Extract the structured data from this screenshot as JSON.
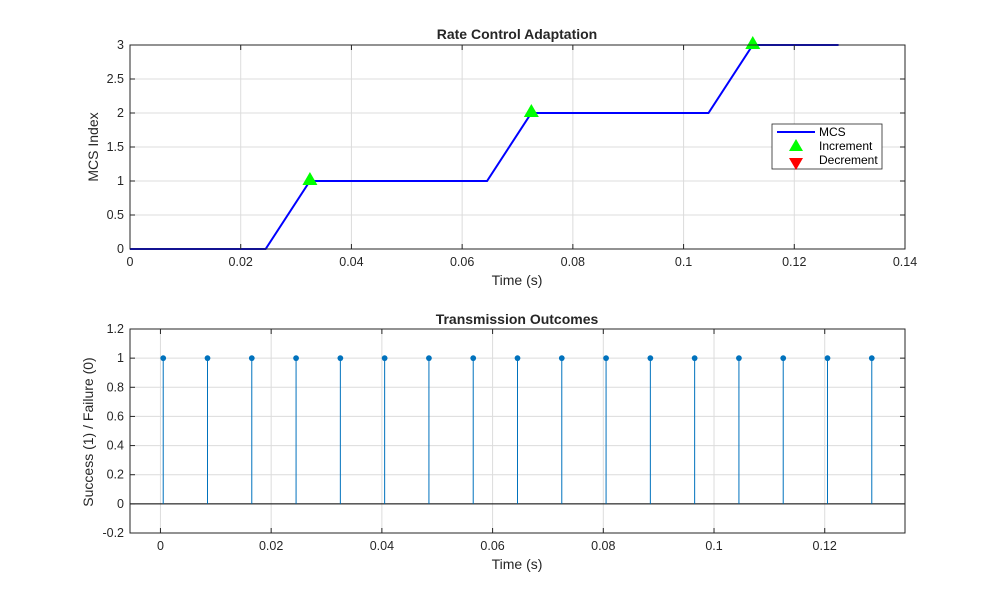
{
  "chart_data": [
    {
      "type": "line",
      "title": "Rate Control Adaptation",
      "xlabel": "Time (s)",
      "ylabel": "MCS Index",
      "xlim": [
        0,
        0.14
      ],
      "ylim": [
        0,
        3
      ],
      "xticks": [
        0,
        0.02,
        0.04,
        0.06,
        0.08,
        0.1,
        0.12,
        0.14
      ],
      "xtick_labels": [
        "0",
        "0.02",
        "0.04",
        "0.06",
        "0.08",
        "0.1",
        "0.12",
        "0.14"
      ],
      "yticks": [
        0,
        0.5,
        1,
        1.5,
        2,
        2.5,
        3
      ],
      "ytick_labels": [
        "0",
        "0.5",
        "1",
        "1.5",
        "2",
        "2.5",
        "3"
      ],
      "grid": true,
      "legend_position": "right",
      "series": [
        {
          "name": "MCS",
          "kind": "line",
          "color": "#0000ff",
          "x": [
            0,
            0.0245,
            0.0325,
            0.0645,
            0.0725,
            0.1045,
            0.1125,
            0.128
          ],
          "y": [
            0,
            0,
            1,
            1,
            2,
            2,
            3,
            3
          ]
        },
        {
          "name": "Increment",
          "kind": "marker-up",
          "color": "#00ff00",
          "x": [
            0.0325,
            0.0725,
            0.1125
          ],
          "y": [
            1,
            2,
            3
          ]
        },
        {
          "name": "Decrement",
          "kind": "marker-down",
          "color": "#ff0000",
          "x": [],
          "y": []
        }
      ]
    },
    {
      "type": "stem",
      "title": "Transmission Outcomes",
      "xlabel": "Time (s)",
      "ylabel": "Success (1) / Failure (0)",
      "xlim": [
        -0.0055,
        0.1345
      ],
      "ylim": [
        -0.2,
        1.2
      ],
      "xticks": [
        0,
        0.02,
        0.04,
        0.06,
        0.08,
        0.1,
        0.12
      ],
      "xtick_labels": [
        "0",
        "0.02",
        "0.04",
        "0.06",
        "0.08",
        "0.1",
        "0.12"
      ],
      "yticks": [
        -0.2,
        0,
        0.2,
        0.4,
        0.6,
        0.8,
        1,
        1.2
      ],
      "ytick_labels": [
        "-0.2",
        "0",
        "0.2",
        "0.4",
        "0.6",
        "0.8",
        "1",
        "1.2"
      ],
      "grid": true,
      "series": [
        {
          "color": "#0072bd",
          "x": [
            0.0005,
            0.0085,
            0.0165,
            0.0245,
            0.0325,
            0.0405,
            0.0485,
            0.0565,
            0.0645,
            0.0725,
            0.0805,
            0.0885,
            0.0965,
            0.1045,
            0.1125,
            0.1205,
            0.1285
          ],
          "y": [
            1,
            1,
            1,
            1,
            1,
            1,
            1,
            1,
            1,
            1,
            1,
            1,
            1,
            1,
            1,
            1,
            1
          ]
        }
      ]
    }
  ]
}
